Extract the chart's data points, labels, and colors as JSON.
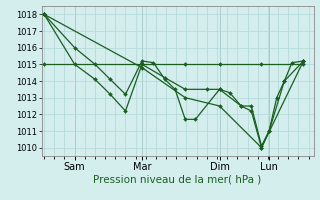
{
  "xlabel": "Pression niveau de la mer( hPa )",
  "ylim": [
    1009.5,
    1018.5
  ],
  "yticks": [
    1010,
    1011,
    1012,
    1013,
    1014,
    1015,
    1016,
    1017,
    1018
  ],
  "bg_color": "#d4eeee",
  "grid_color": "#b8dada",
  "line_color": "#1a5e20",
  "day_labels": [
    "Sam",
    "Mar",
    "Dim",
    "Lun"
  ],
  "day_positions": [
    0.12,
    0.385,
    0.69,
    0.885
  ],
  "xlim": [
    -0.01,
    1.06
  ],
  "series1_x": [
    0.0,
    0.12,
    0.2,
    0.26,
    0.32,
    0.385,
    0.43,
    0.475,
    0.515,
    0.555,
    0.595,
    0.69,
    0.73,
    0.775,
    0.815,
    0.855,
    0.885,
    0.915,
    0.945,
    0.975,
    1.02
  ],
  "series1_y": [
    1018,
    1016,
    1015,
    1014.1,
    1013.2,
    1015.2,
    1015.1,
    1014.1,
    1013.5,
    1011.7,
    1011.7,
    1013.5,
    1013.3,
    1012.5,
    1012.5,
    1010.1,
    1011.0,
    1013.0,
    1014.0,
    1015.1,
    1015.2
  ],
  "series2_x": [
    0.0,
    0.12,
    0.2,
    0.26,
    0.32,
    0.385,
    0.475,
    0.555,
    0.64,
    0.69,
    0.775,
    0.815,
    0.855,
    0.885,
    0.945,
    1.02
  ],
  "series2_y": [
    1018,
    1015,
    1014.1,
    1013.2,
    1012.2,
    1015.0,
    1014.2,
    1013.5,
    1013.5,
    1013.5,
    1012.5,
    1012.2,
    1010.0,
    1011.0,
    1014.0,
    1015.2
  ],
  "series3_x": [
    0.0,
    0.385,
    0.555,
    0.69,
    0.855,
    1.02
  ],
  "series3_y": [
    1015,
    1015,
    1015,
    1015,
    1015,
    1015
  ],
  "series4_x": [
    0.0,
    0.385,
    0.555,
    0.69,
    0.855,
    1.02
  ],
  "series4_y": [
    1018,
    1014.8,
    1013.0,
    1012.5,
    1010.0,
    1015.2
  ],
  "markersize": 2.0,
  "linewidth": 0.9
}
